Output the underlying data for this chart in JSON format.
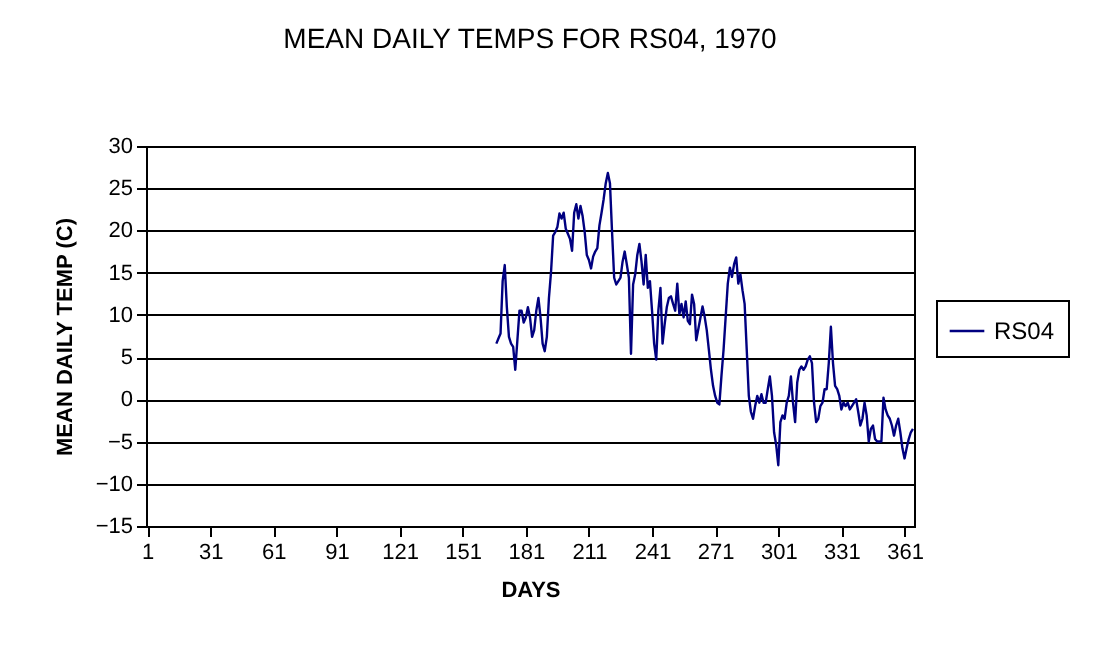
{
  "chart_data": {
    "type": "line",
    "title": "MEAN DAILY TEMPS FOR RS04, 1970",
    "xlabel": "DAYS",
    "ylabel": "MEAN DAILY TEMP (C)",
    "x": [
      167,
      168,
      169,
      170,
      171,
      172,
      173,
      174,
      175,
      176,
      177,
      178,
      179,
      180,
      181,
      182,
      183,
      184,
      185,
      186,
      187,
      188,
      189,
      190,
      191,
      192,
      193,
      194,
      195,
      196,
      197,
      198,
      199,
      200,
      201,
      202,
      203,
      204,
      205,
      206,
      207,
      208,
      209,
      210,
      211,
      212,
      213,
      214,
      215,
      216,
      217,
      218,
      219,
      220,
      221,
      222,
      223,
      224,
      225,
      226,
      227,
      228,
      229,
      230,
      231,
      232,
      233,
      234,
      235,
      236,
      237,
      238,
      239,
      240,
      241,
      242,
      243,
      244,
      245,
      246,
      247,
      248,
      249,
      250,
      251,
      252,
      253,
      254,
      255,
      256,
      257,
      258,
      259,
      260,
      261,
      262,
      265,
      266,
      267,
      268,
      269,
      270,
      271,
      272,
      273,
      274,
      275,
      276,
      277,
      278,
      279,
      280,
      281,
      282,
      283,
      284,
      285,
      286,
      287,
      288,
      289,
      290,
      291,
      292,
      293,
      294,
      295,
      296,
      297,
      298,
      299,
      300,
      301,
      302,
      303,
      304,
      305,
      306,
      307,
      308,
      309,
      310,
      311,
      312,
      313,
      314,
      315,
      316,
      317,
      318,
      319,
      320,
      321,
      322,
      323,
      324,
      325,
      326,
      327,
      328,
      329,
      330,
      331,
      332,
      333,
      334,
      335,
      336,
      337,
      338,
      339,
      340,
      341,
      342,
      343,
      344,
      345,
      346,
      347,
      348,
      349,
      350,
      351,
      352,
      353,
      354,
      355,
      356,
      357,
      358,
      359,
      360,
      361,
      362,
      363,
      364,
      365
    ],
    "series": [
      {
        "name": "RS04",
        "color": "#000080",
        "values": [
          6.6,
          7.2,
          7.8,
          14,
          15.9,
          10.9,
          7.4,
          6.6,
          6.2,
          3.5,
          7,
          10.5,
          10.5,
          9.1,
          9.7,
          10.9,
          9.7,
          7.4,
          8.2,
          10.5,
          12,
          9.7,
          6.6,
          5.7,
          7.4,
          12,
          15.1,
          19.4,
          19.8,
          20.4,
          22,
          21.4,
          22.1,
          20.2,
          19.6,
          19,
          17.6,
          22.1,
          23.1,
          21.4,
          22.9,
          21.7,
          19.8,
          17.1,
          16.5,
          15.5,
          16.9,
          17.5,
          17.9,
          20.6,
          22.1,
          23.7,
          25.6,
          26.8,
          25.6,
          19.8,
          14.4,
          13.6,
          14,
          14.4,
          16.3,
          17.5,
          16,
          14.4,
          5.4,
          13.6,
          14.8,
          17.1,
          18.4,
          16.3,
          13.6,
          17.1,
          13.2,
          14,
          10.5,
          6.6,
          4.7,
          10.5,
          13.2,
          6.6,
          8.9,
          10.9,
          12,
          12.2,
          11.3,
          10.5,
          13.7,
          10.1,
          11.3,
          9.7,
          11.6,
          9.3,
          8.9,
          12.4,
          11.3,
          7,
          11,
          9.8,
          8.2,
          5.9,
          3.5,
          1.6,
          0.4,
          -0.4,
          -0.6,
          2.8,
          5.9,
          9.8,
          13.7,
          15.6,
          14.5,
          16,
          16.8,
          13.7,
          14.8,
          12.9,
          11.3,
          5.9,
          0.4,
          -1.5,
          -2.3,
          -0.8,
          0.4,
          -0.4,
          0.6,
          -0.4,
          -0.4,
          1.2,
          2.7,
          0.4,
          -3.9,
          -5.4,
          -7.8,
          -2.7,
          -1.9,
          -2.3,
          -0.4,
          0.4,
          2.7,
          -0.4,
          -2.7,
          2,
          3.5,
          3.9,
          3.5,
          3.9,
          4.7,
          5.1,
          4.3,
          -0.4,
          -2.7,
          -2.3,
          -0.8,
          -0.4,
          1.2,
          1.2,
          4.3,
          8.6,
          4.3,
          1.6,
          1.2,
          0.4,
          -1.2,
          -0.4,
          -0.8,
          -0.4,
          -1.2,
          -0.8,
          -0.4,
          0,
          -1.5,
          -3.1,
          -2.3,
          -0.4,
          -1.9,
          -5,
          -3.5,
          -3.1,
          -4.7,
          -5,
          -5,
          -5,
          0.2,
          -1.2,
          -1.9,
          -2.3,
          -3.1,
          -4.3,
          -3.1,
          -2.3,
          -3.9,
          -5.8,
          -7,
          -5.8,
          -4.7,
          -3.9,
          -3.5
        ]
      }
    ],
    "xlim": [
      0.5,
      365.5
    ],
    "xticks": [
      1,
      31,
      61,
      91,
      121,
      151,
      181,
      211,
      241,
      271,
      301,
      331,
      361
    ],
    "ylim": [
      -15,
      30
    ],
    "yticks": [
      -15,
      -10,
      -5,
      0,
      5,
      10,
      15,
      20,
      25,
      30
    ],
    "grid": "y",
    "legend": "right",
    "line_style": "solid",
    "marker": "none"
  }
}
